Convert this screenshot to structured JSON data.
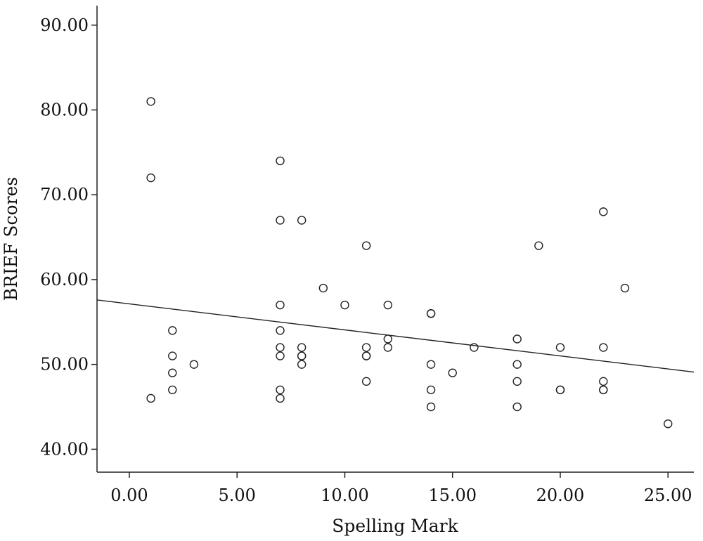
{
  "chart_data": {
    "type": "scatter",
    "title": "",
    "xlabel": "Spelling Mark",
    "ylabel": "BRIEF Scores",
    "xlim": [
      -1.5,
      26.2
    ],
    "ylim": [
      37.3,
      92.3
    ],
    "xticks": [
      0,
      5,
      10,
      15,
      20,
      25
    ],
    "yticks": [
      40,
      50,
      60,
      70,
      80,
      90
    ],
    "xtick_labels": [
      "0.00",
      "5.00",
      "10.00",
      "15.00",
      "20.00",
      "25.00"
    ],
    "ytick_labels": [
      "40.00",
      "50.00",
      "60.00",
      "70.00",
      "80.00",
      "90.00"
    ],
    "grid": false,
    "legend": "none",
    "marker": "open-circle",
    "colors": {
      "marker": "#222222",
      "axis": "#222222",
      "fit_line": "#222222"
    },
    "points": [
      {
        "x": 1,
        "y": 81
      },
      {
        "x": 1,
        "y": 72
      },
      {
        "x": 1,
        "y": 46
      },
      {
        "x": 2,
        "y": 54
      },
      {
        "x": 2,
        "y": 51
      },
      {
        "x": 2,
        "y": 49
      },
      {
        "x": 2,
        "y": 47
      },
      {
        "x": 3,
        "y": 50
      },
      {
        "x": 7,
        "y": 74
      },
      {
        "x": 7,
        "y": 67
      },
      {
        "x": 7,
        "y": 57
      },
      {
        "x": 7,
        "y": 54
      },
      {
        "x": 7,
        "y": 52
      },
      {
        "x": 7,
        "y": 51
      },
      {
        "x": 7,
        "y": 47
      },
      {
        "x": 7,
        "y": 46
      },
      {
        "x": 8,
        "y": 67
      },
      {
        "x": 8,
        "y": 52
      },
      {
        "x": 8,
        "y": 51
      },
      {
        "x": 8,
        "y": 51
      },
      {
        "x": 8,
        "y": 50
      },
      {
        "x": 9,
        "y": 59
      },
      {
        "x": 10,
        "y": 57
      },
      {
        "x": 11,
        "y": 64
      },
      {
        "x": 11,
        "y": 52
      },
      {
        "x": 11,
        "y": 51
      },
      {
        "x": 11,
        "y": 51
      },
      {
        "x": 11,
        "y": 48
      },
      {
        "x": 12,
        "y": 57
      },
      {
        "x": 12,
        "y": 53
      },
      {
        "x": 12,
        "y": 52
      },
      {
        "x": 14,
        "y": 56
      },
      {
        "x": 14,
        "y": 56
      },
      {
        "x": 14,
        "y": 50
      },
      {
        "x": 14,
        "y": 47
      },
      {
        "x": 14,
        "y": 45
      },
      {
        "x": 15,
        "y": 49
      },
      {
        "x": 16,
        "y": 52
      },
      {
        "x": 18,
        "y": 53
      },
      {
        "x": 18,
        "y": 50
      },
      {
        "x": 18,
        "y": 48
      },
      {
        "x": 18,
        "y": 45
      },
      {
        "x": 19,
        "y": 64
      },
      {
        "x": 20,
        "y": 52
      },
      {
        "x": 20,
        "y": 47
      },
      {
        "x": 20,
        "y": 47
      },
      {
        "x": 22,
        "y": 68
      },
      {
        "x": 22,
        "y": 52
      },
      {
        "x": 22,
        "y": 48
      },
      {
        "x": 22,
        "y": 47
      },
      {
        "x": 22,
        "y": 47
      },
      {
        "x": 23,
        "y": 59
      },
      {
        "x": 25,
        "y": 43
      }
    ],
    "fit_line": {
      "x": [
        -1.5,
        26.2
      ],
      "y": [
        57.6,
        49.1
      ]
    }
  }
}
